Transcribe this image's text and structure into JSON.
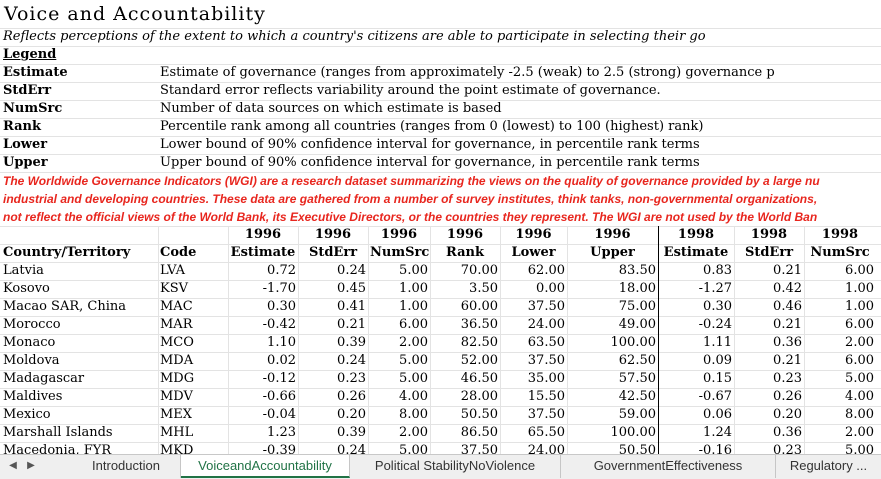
{
  "sheet": {
    "title": "Voice and Accountability",
    "subtitle": "Reflects perceptions of the extent to which a country's citizens are able to participate in selecting their go",
    "legend_heading": "Legend",
    "legend": [
      {
        "key": "Estimate",
        "desc": "Estimate of governance (ranges from approximately -2.5 (weak) to 2.5 (strong) governance p"
      },
      {
        "key": "StdErr",
        "desc": "Standard error reflects variability around the point estimate of governance."
      },
      {
        "key": "NumSrc",
        "desc": "Number of data sources on which estimate is based"
      },
      {
        "key": "Rank",
        "desc": "Percentile rank among all countries (ranges from 0 (lowest) to 100 (highest) rank)"
      },
      {
        "key": "Lower",
        "desc": "Lower bound of 90% confidence interval for governance, in percentile rank terms"
      },
      {
        "key": "Upper",
        "desc": "Upper bound of 90% confidence interval for governance, in percentile rank terms"
      }
    ],
    "notes": [
      "The Worldwide Governance Indicators (WGI) are a research dataset summarizing the views on the quality of governance provided by a large nu",
      "industrial and developing countries. These data are gathered from a number of survey institutes, think tanks, non-governmental organizations,",
      "not reflect the official views of the World Bank, its Executive Directors, or the countries they represent. The WGI are not used by the World Ban"
    ],
    "year_row": [
      "1996",
      "1996",
      "1996",
      "1996",
      "1996",
      "1996",
      "1998",
      "1998",
      "1998"
    ],
    "header_row": [
      "Country/Territory",
      "Code",
      "Estimate",
      "StdErr",
      "NumSrc",
      "Rank",
      "Lower",
      "Upper",
      "Estimate",
      "StdErr",
      "NumSrc"
    ],
    "rows": [
      [
        "Latvia",
        "LVA",
        "0.72",
        "0.24",
        "5.00",
        "70.00",
        "62.00",
        "83.50",
        "0.83",
        "0.21",
        "6.00"
      ],
      [
        "Kosovo",
        "KSV",
        "-1.70",
        "0.45",
        "1.00",
        "3.50",
        "0.00",
        "18.00",
        "-1.27",
        "0.42",
        "1.00"
      ],
      [
        "Macao SAR, China",
        "MAC",
        "0.30",
        "0.41",
        "1.00",
        "60.00",
        "37.50",
        "75.00",
        "0.30",
        "0.46",
        "1.00"
      ],
      [
        "Morocco",
        "MAR",
        "-0.42",
        "0.21",
        "6.00",
        "36.50",
        "24.00",
        "49.00",
        "-0.24",
        "0.21",
        "6.00"
      ],
      [
        "Monaco",
        "MCO",
        "1.10",
        "0.39",
        "2.00",
        "82.50",
        "63.50",
        "100.00",
        "1.11",
        "0.36",
        "2.00"
      ],
      [
        "Moldova",
        "MDA",
        "0.02",
        "0.24",
        "5.00",
        "52.00",
        "37.50",
        "62.50",
        "0.09",
        "0.21",
        "6.00"
      ],
      [
        "Madagascar",
        "MDG",
        "-0.12",
        "0.23",
        "5.00",
        "46.50",
        "35.00",
        "57.50",
        "0.15",
        "0.23",
        "5.00"
      ],
      [
        "Maldives",
        "MDV",
        "-0.66",
        "0.26",
        "4.00",
        "28.00",
        "15.50",
        "42.50",
        "-0.67",
        "0.26",
        "4.00"
      ],
      [
        "Mexico",
        "MEX",
        "-0.04",
        "0.20",
        "8.00",
        "50.50",
        "37.50",
        "59.00",
        "0.06",
        "0.20",
        "8.00"
      ],
      [
        "Marshall Islands",
        "MHL",
        "1.23",
        "0.39",
        "2.00",
        "86.50",
        "65.50",
        "100.00",
        "1.24",
        "0.36",
        "2.00"
      ],
      [
        "Macedonia, FYR",
        "MKD",
        "-0.39",
        "0.24",
        "5.00",
        "37.50",
        "24.00",
        "50.50",
        "-0.16",
        "0.23",
        "5.00"
      ]
    ]
  },
  "tabs": {
    "items": [
      "Introduction",
      "VoiceandAccountability",
      "Political StabilityNoViolence",
      "GovernmentEffectiveness",
      "Regulatory ..."
    ],
    "active_index": 1,
    "accent_color": "#217346"
  },
  "colors": {
    "note_red": "#e8261e",
    "gridline": "#e3e3e3"
  }
}
